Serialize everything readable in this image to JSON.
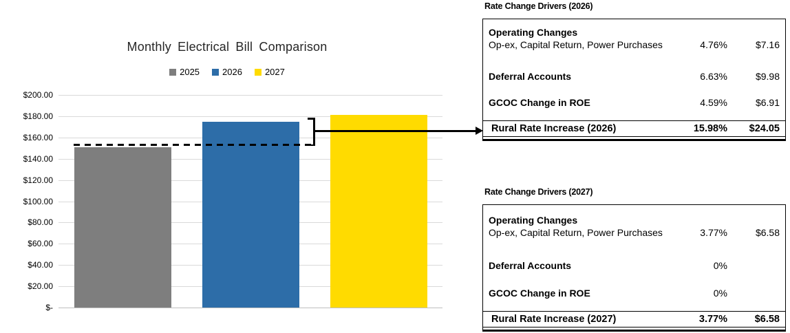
{
  "chart_data": {
    "type": "bar",
    "title": "Monthly Electrical Bill Comparison",
    "categories": [
      "2025",
      "2026",
      "2027"
    ],
    "values": [
      150.5,
      174.55,
      181.13
    ],
    "series_colors": [
      "#7E7E7E",
      "#2D6DA8",
      "#FFDB00"
    ],
    "legend": [
      "2025",
      "2026",
      "2027"
    ],
    "legend_position": "top",
    "xlabel": "",
    "ylabel": "",
    "ylim": [
      0,
      200
    ],
    "y_tick_step": 20,
    "grid": true,
    "y_tick_labels": [
      "$200.00",
      "$180.00",
      "$160.00",
      "$140.00",
      "$120.00",
      "$100.00",
      "$80.00",
      "$60.00",
      "$40.00",
      "$20.00",
      "$-"
    ],
    "annotations": [
      {
        "type": "dashed-baseline",
        "value": 150.5,
        "description": "2025 bill level extended across chart"
      },
      {
        "type": "bracket-arrow",
        "from_value": 150.5,
        "to_value": 174.55,
        "points_to": "Rural Rate Increase (2026) table row"
      }
    ]
  },
  "tables": [
    {
      "title": "Rate Change Drivers (2026)",
      "rows": [
        {
          "label": "Operating Changes",
          "sublabel": "Op-ex, Capital Return, Power Purchases",
          "pct": "4.76%",
          "usd": "$7.16"
        },
        {
          "label": "Deferral Accounts",
          "pct": "6.63%",
          "usd": "$9.98"
        },
        {
          "label": "GCOC Change in ROE",
          "pct": "4.59%",
          "usd": "$6.91"
        }
      ],
      "total": {
        "label": "Rural Rate Increase (2026)",
        "pct": "15.98%",
        "usd": "$24.05"
      }
    },
    {
      "title": "Rate Change Drivers (2027)",
      "rows": [
        {
          "label": "Operating Changes",
          "sublabel": "Op-ex, Capital Return, Power Purchases",
          "pct": "3.77%",
          "usd": "$6.58"
        },
        {
          "label": "Deferral Accounts",
          "pct": "0%",
          "usd": ""
        },
        {
          "label": "GCOC Change in ROE",
          "pct": "0%",
          "usd": ""
        }
      ],
      "total": {
        "label": "Rural Rate Increase (2027)",
        "pct": "3.77%",
        "usd": "$6.58"
      }
    }
  ]
}
